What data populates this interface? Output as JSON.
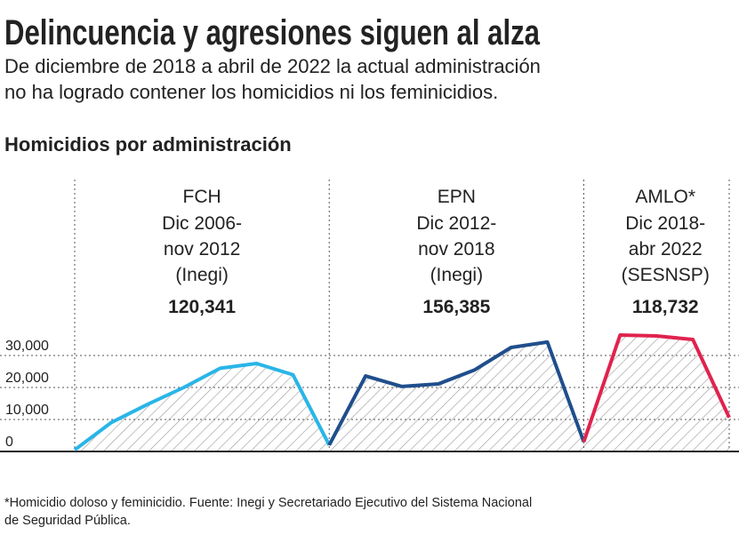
{
  "chart_data": {
    "type": "line",
    "title": "Delincuencia  y agresiones siguen al alza",
    "subtitle_lines": [
      "De diciembre de 2018 a abril de 2022 la actual administración",
      "no ha logrado contener los homicidios ni los feminicidios."
    ],
    "chart_title": "Homicidios por administración",
    "categories": [
      null,
      null,
      null,
      null,
      null,
      null,
      null,
      null,
      null,
      null,
      null,
      null,
      null,
      null,
      null,
      null,
      null,
      null,
      null
    ],
    "series": [
      {
        "name": "FCH",
        "color": "#29b5e8",
        "values": [
          500,
          9000,
          14700,
          20000,
          26000,
          27500,
          24000,
          2000,
          null,
          null,
          null,
          null,
          null,
          null,
          null,
          null,
          null,
          null,
          null
        ]
      },
      {
        "name": "EPN",
        "color": "#1f4e8c",
        "values": [
          null,
          null,
          null,
          null,
          null,
          null,
          null,
          2000,
          23600,
          20300,
          21100,
          25500,
          32500,
          34200,
          3000,
          null,
          null,
          null,
          null
        ]
      },
      {
        "name": "AMLO*",
        "color": "#e0234e",
        "values": [
          null,
          null,
          null,
          null,
          null,
          null,
          null,
          null,
          null,
          null,
          null,
          null,
          null,
          null,
          3000,
          36400,
          36100,
          35000,
          10600
        ]
      }
    ],
    "annotations": [
      {
        "lines": [
          "Dic 2006-",
          "nov 2012",
          "(Inegi)"
        ],
        "total": "120,341"
      },
      {
        "lines": [
          "Dic 2012-",
          "nov 2018",
          "(Inegi)"
        ],
        "total": "156,385"
      },
      {
        "lines": [
          "Dic 2018-",
          "abr 2022",
          "(SESNSP)"
        ],
        "total": "118,732"
      }
    ],
    "ylim": [
      0,
      85000
    ],
    "yticks": [
      0,
      {
        "value": 10000,
        "label": "10,000"
      },
      {
        "value": 20000,
        "label": "20,000"
      },
      {
        "value": 30000,
        "label": "30,000"
      }
    ],
    "grid": true,
    "footnote_lines": [
      "*Homicidio doloso y feminicidio. Fuente: Inegi y Secretariado Ejecutivo del Sistema Nacional",
      "de Seguridad Pública."
    ]
  }
}
